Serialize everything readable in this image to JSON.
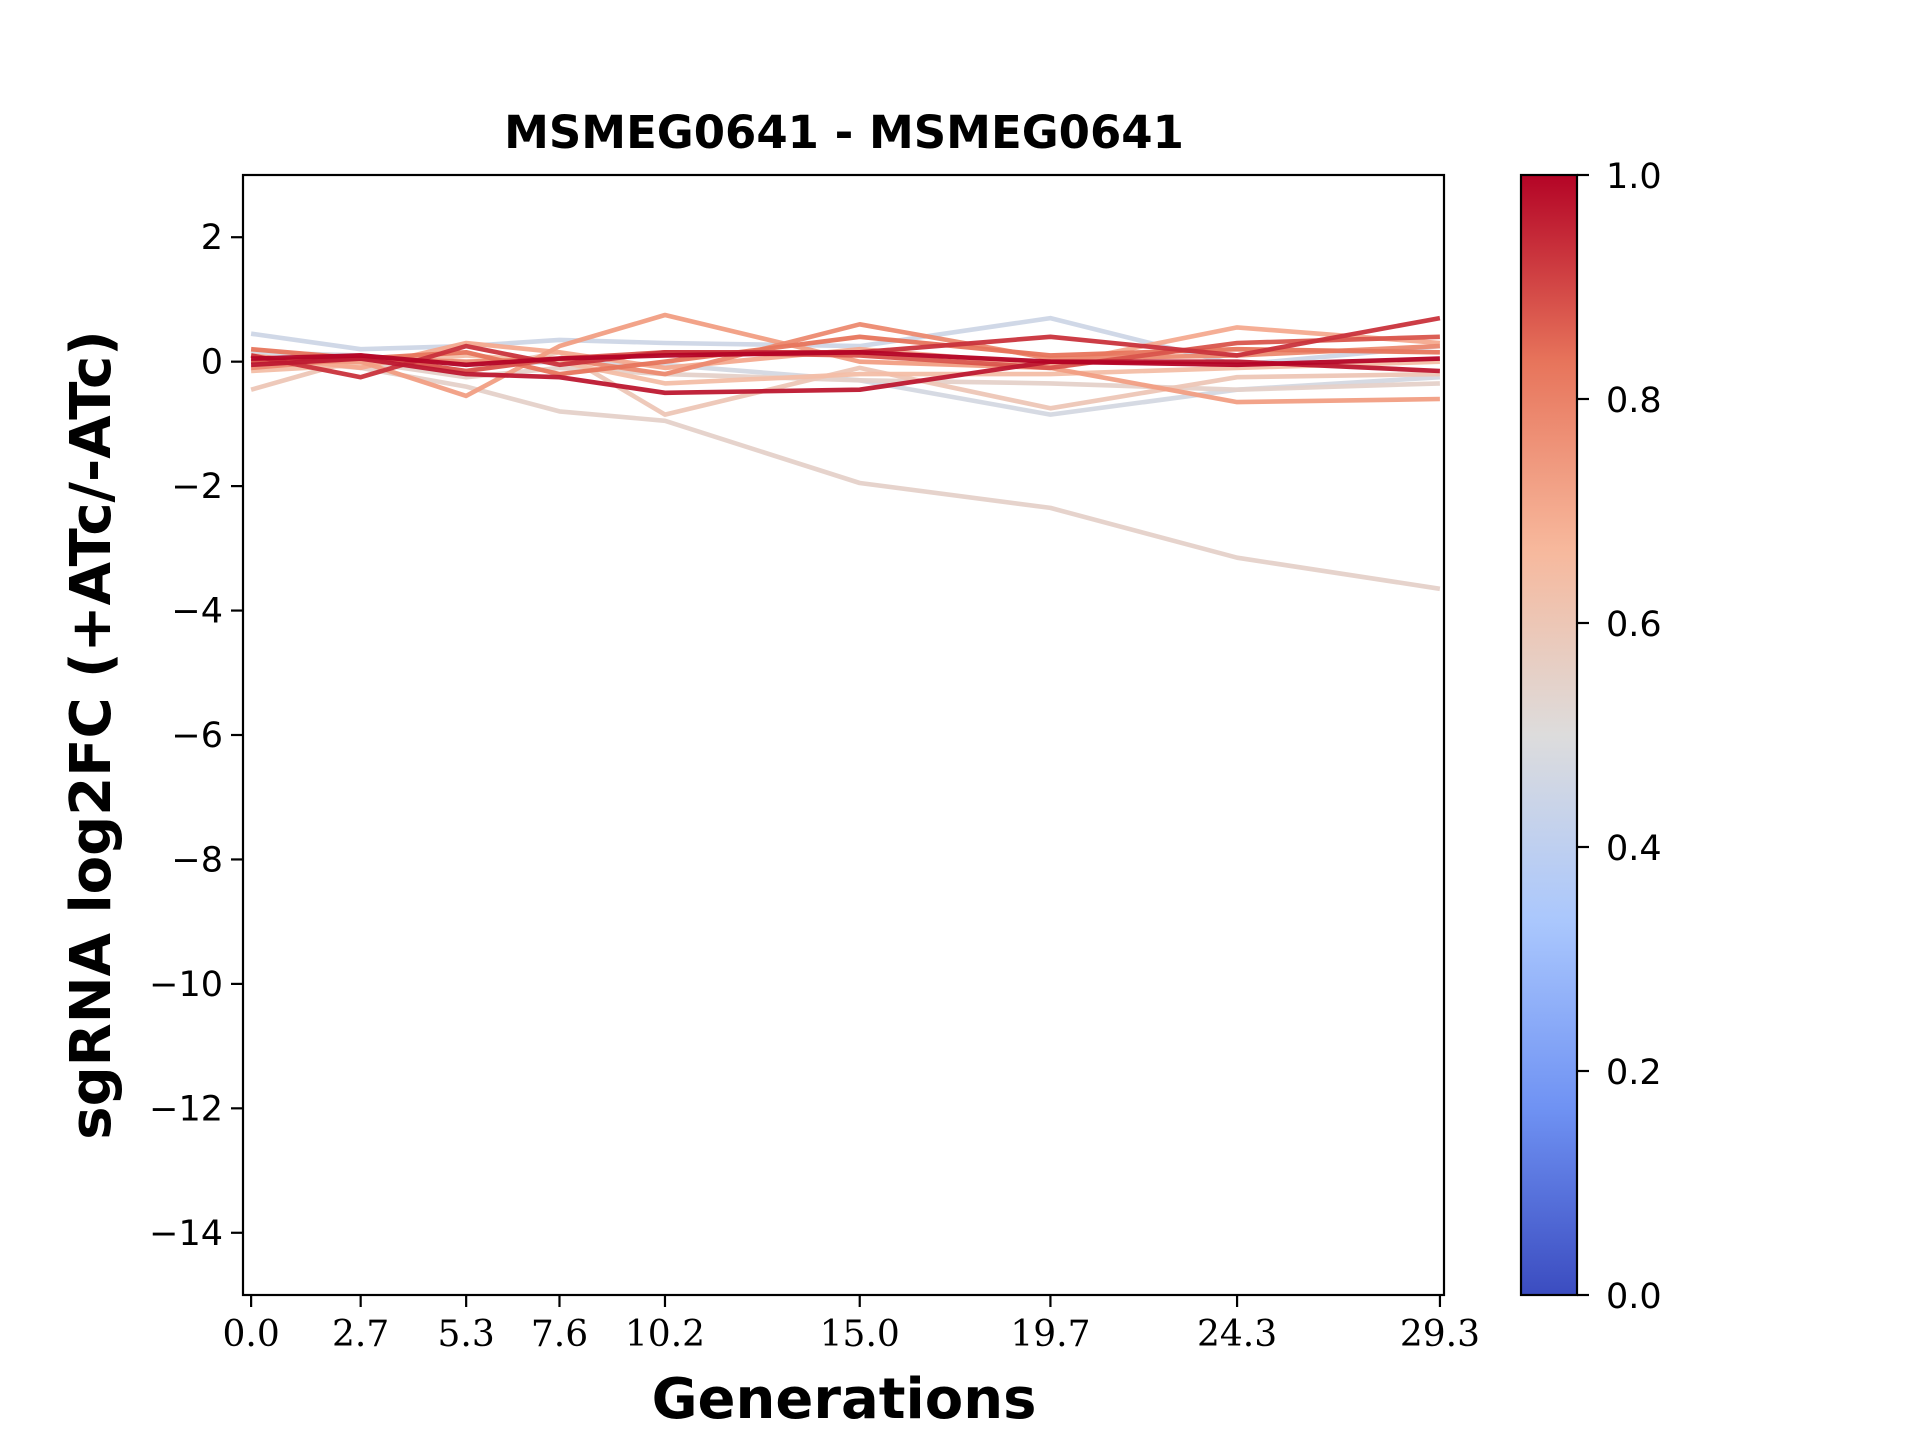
{
  "chart_data": {
    "type": "line",
    "title": "MSMEG0641 - MSMEG0641",
    "xlabel": "Generations",
    "ylabel": "sgRNA log2FC (+ATc/-ATc)",
    "x": [
      0.0,
      2.7,
      5.3,
      7.6,
      10.2,
      15.0,
      19.7,
      24.3,
      29.3
    ],
    "x_tick_labels": [
      "0.0",
      "2.7",
      "5.3",
      "7.6",
      "10.2",
      "15.0",
      "19.7",
      "24.3",
      "29.3"
    ],
    "xlim": [
      -0.2,
      29.4
    ],
    "ylim": [
      -15,
      3
    ],
    "y_ticks": [
      2,
      0,
      -2,
      -4,
      -6,
      -8,
      -10,
      -12,
      -14
    ],
    "y_tick_labels": [
      "2",
      "0",
      "−2",
      "−4",
      "−6",
      "−8",
      "−10",
      "−12",
      "−14"
    ],
    "grid": false,
    "colormap": "coolwarm",
    "colorbar": {
      "ticks": [
        0.0,
        0.2,
        0.4,
        0.6,
        0.8,
        1.0
      ],
      "tick_labels": [
        "0.0",
        "0.2",
        "0.4",
        "0.6",
        "0.8",
        "1.0"
      ],
      "range": [
        0,
        1
      ],
      "stops": [
        "#3b4cc0",
        "#6f92f3",
        "#aac7fd",
        "#dddcdc",
        "#f7b89c",
        "#e7745b",
        "#b40426"
      ]
    },
    "series": [
      {
        "color_value": 0.45,
        "values": [
          0.45,
          0.2,
          0.25,
          0.35,
          0.3,
          0.25,
          0.7,
          -0.05,
          0.25
        ]
      },
      {
        "color_value": 0.47,
        "values": [
          0.15,
          0.1,
          -0.05,
          0.0,
          -0.05,
          -0.3,
          -0.85,
          -0.45,
          -0.25
        ]
      },
      {
        "color_value": 0.55,
        "values": [
          0.05,
          -0.1,
          -0.4,
          -0.8,
          -0.95,
          -1.95,
          -2.35,
          -3.15,
          -3.65
        ]
      },
      {
        "color_value": 0.55,
        "values": [
          -0.05,
          0.0,
          -0.25,
          -0.1,
          -0.2,
          -0.3,
          -0.35,
          -0.45,
          -0.35
        ]
      },
      {
        "color_value": 0.6,
        "values": [
          -0.45,
          0.05,
          -0.15,
          0.15,
          -0.85,
          -0.1,
          -0.75,
          -0.25,
          -0.2
        ]
      },
      {
        "color_value": 0.64,
        "values": [
          -0.15,
          -0.05,
          0.1,
          0.0,
          -0.35,
          -0.2,
          -0.2,
          -0.1,
          0.0
        ]
      },
      {
        "color_value": 0.7,
        "values": [
          0.1,
          -0.1,
          0.3,
          0.15,
          -0.1,
          0.2,
          -0.05,
          0.55,
          0.3
        ]
      },
      {
        "color_value": 0.73,
        "values": [
          0.0,
          0.0,
          -0.55,
          0.25,
          0.75,
          0.0,
          -0.1,
          -0.65,
          -0.6
        ]
      },
      {
        "color_value": 0.78,
        "values": [
          -0.1,
          0.05,
          0.0,
          0.05,
          -0.2,
          0.6,
          0.05,
          0.1,
          0.25
        ]
      },
      {
        "color_value": 0.83,
        "values": [
          0.2,
          0.05,
          0.15,
          -0.2,
          0.0,
          0.4,
          0.1,
          0.2,
          0.15
        ]
      },
      {
        "color_value": 0.88,
        "values": [
          0.0,
          0.1,
          -0.15,
          0.05,
          0.15,
          0.1,
          -0.1,
          0.3,
          0.4
        ]
      },
      {
        "color_value": 0.93,
        "values": [
          0.1,
          -0.25,
          0.25,
          -0.05,
          0.15,
          0.15,
          0.4,
          0.1,
          0.7
        ]
      },
      {
        "color_value": 0.97,
        "values": [
          -0.05,
          0.05,
          -0.2,
          -0.25,
          -0.5,
          -0.45,
          0.0,
          0.0,
          -0.15
        ]
      },
      {
        "color_value": 1.0,
        "values": [
          0.05,
          0.1,
          -0.05,
          0.05,
          0.1,
          0.15,
          0.0,
          -0.05,
          0.05
        ]
      }
    ]
  }
}
